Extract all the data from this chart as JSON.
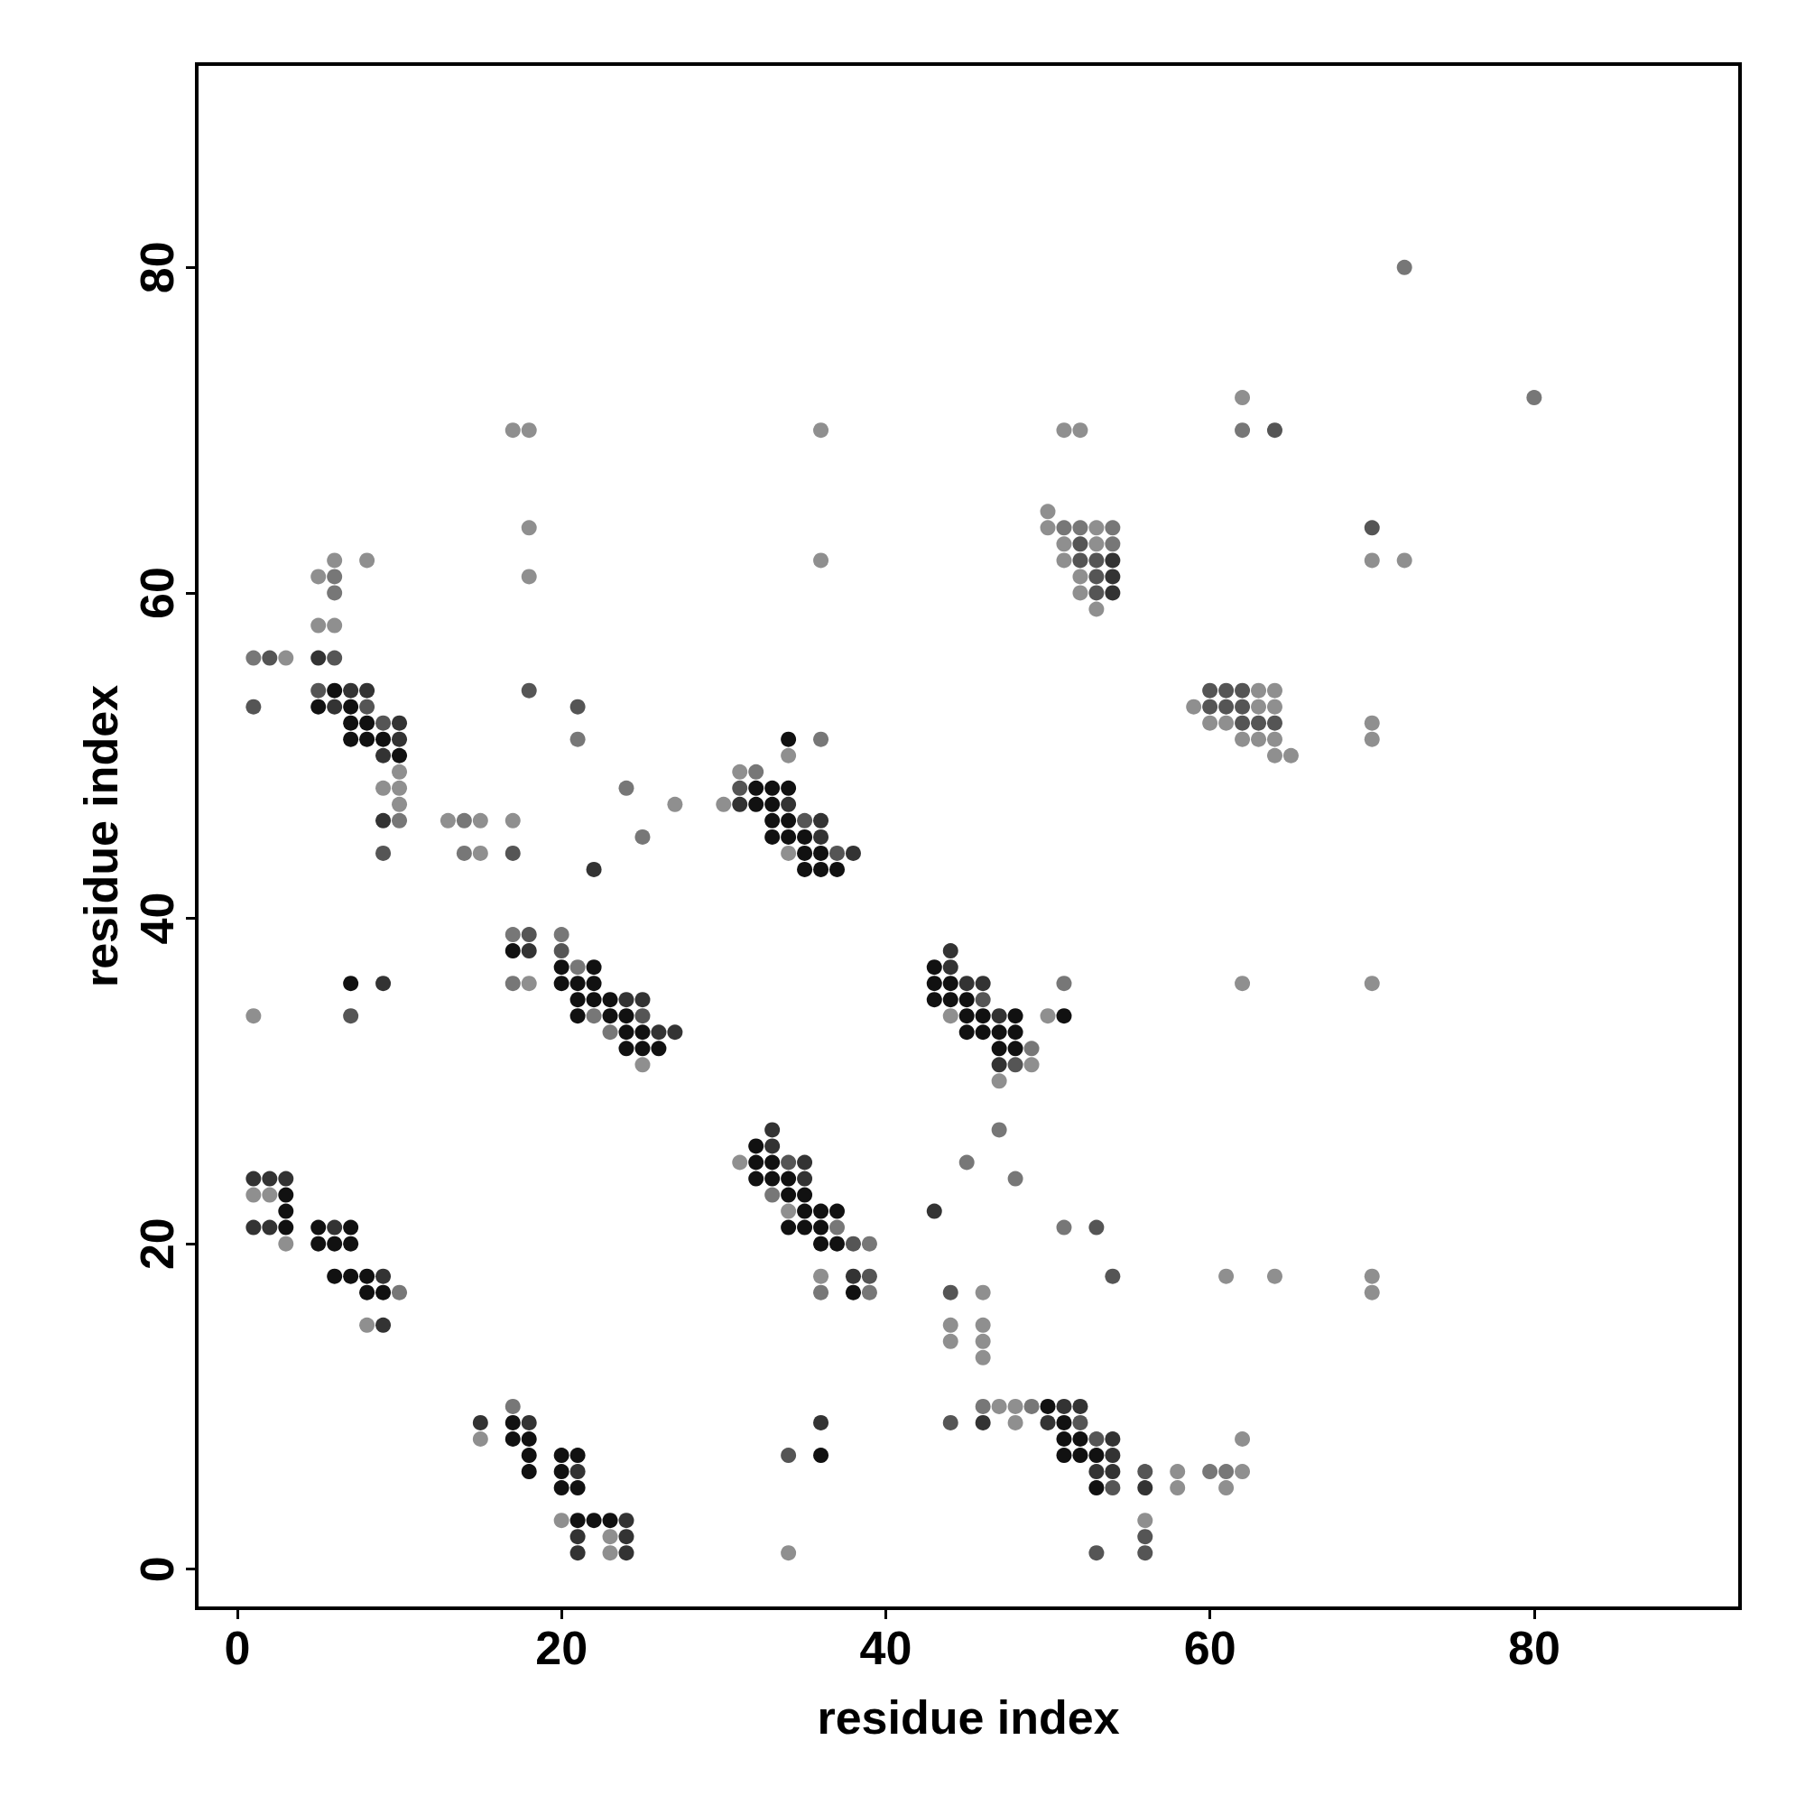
{
  "chart_data": {
    "type": "scatter",
    "xlabel": "residue index",
    "ylabel": "residue index",
    "marker": "circle",
    "xlim": [
      -2.5,
      92.7
    ],
    "ylim": [
      -2.4,
      92.5
    ],
    "xticks": [
      0,
      20,
      40,
      60,
      80
    ],
    "yticks": [
      0,
      20,
      40,
      60,
      80
    ],
    "series": [
      {
        "color": "#111111",
        "x": [
          3,
          3,
          3,
          5,
          7,
          5,
          6,
          7,
          6,
          7,
          8,
          8,
          9,
          17,
          17,
          18,
          18,
          18,
          20,
          21,
          20,
          20,
          21,
          21,
          22,
          23,
          32,
          32,
          33,
          32,
          33,
          34,
          34,
          35,
          35,
          36,
          37,
          34,
          35,
          36,
          36,
          37,
          38,
          50,
          51,
          51,
          52,
          36,
          51,
          52,
          53,
          53,
          6,
          5,
          7,
          7,
          8,
          7,
          8,
          9,
          10,
          17,
          20,
          22,
          7,
          20,
          21,
          22,
          21,
          22,
          23,
          21,
          23,
          24,
          24,
          25,
          24,
          25,
          26,
          34,
          32,
          33,
          34,
          32,
          33,
          33,
          34,
          33,
          34,
          35,
          35,
          36,
          35,
          36,
          37,
          43,
          43,
          44,
          43,
          44,
          45,
          45,
          46,
          48,
          51,
          45,
          46,
          47,
          48,
          47,
          48
        ],
        "values": [
          23,
          22,
          21,
          21,
          21,
          20,
          20,
          20,
          18,
          18,
          18,
          17,
          17,
          9,
          8,
          8,
          7,
          6,
          7,
          7,
          6,
          5,
          5,
          3,
          3,
          3,
          26,
          25,
          25,
          24,
          24,
          24,
          23,
          23,
          22,
          22,
          22,
          21,
          21,
          21,
          20,
          20,
          17,
          10,
          9,
          8,
          8,
          7,
          7,
          7,
          7,
          5,
          54,
          53,
          53,
          52,
          52,
          51,
          51,
          51,
          50,
          38,
          37,
          37,
          36,
          36,
          36,
          36,
          35,
          35,
          35,
          34,
          34,
          34,
          33,
          33,
          32,
          32,
          32,
          51,
          48,
          48,
          48,
          47,
          47,
          46,
          46,
          45,
          45,
          45,
          44,
          44,
          43,
          43,
          43,
          37,
          36,
          36,
          35,
          35,
          35,
          34,
          34,
          34,
          34,
          33,
          33,
          33,
          33,
          32,
          32
        ]
      },
      {
        "color": "#333333",
        "x": [
          1,
          2,
          3,
          1,
          2,
          6,
          9,
          9,
          15,
          18,
          21,
          24,
          21,
          24,
          21,
          24,
          33,
          33,
          35,
          35,
          43,
          38,
          51,
          52,
          36,
          46,
          50,
          54,
          54,
          53,
          54,
          56,
          5,
          7,
          8,
          6,
          10,
          10,
          9,
          9,
          22,
          18,
          9,
          24,
          25,
          26,
          27,
          31,
          34,
          36,
          36,
          38,
          44,
          44,
          45,
          46,
          47,
          47,
          54,
          54,
          54
        ],
        "values": [
          24,
          24,
          24,
          21,
          21,
          21,
          18,
          15,
          9,
          9,
          6,
          3,
          2,
          2,
          1,
          1,
          27,
          26,
          25,
          24,
          22,
          18,
          10,
          10,
          9,
          9,
          9,
          8,
          7,
          6,
          6,
          5,
          56,
          54,
          54,
          53,
          52,
          51,
          50,
          46,
          43,
          38,
          36,
          35,
          35,
          33,
          33,
          47,
          47,
          46,
          45,
          44,
          38,
          37,
          36,
          36,
          34,
          31,
          62,
          61,
          60
        ]
      },
      {
        "color": "#555555",
        "x": [
          34,
          53,
          38,
          39,
          54,
          44,
          44,
          52,
          53,
          34,
          54,
          53,
          60,
          61,
          62,
          60,
          61,
          62,
          62,
          63,
          64,
          56,
          56,
          56,
          2,
          6,
          5,
          18,
          1,
          8,
          21,
          9,
          9,
          17,
          18,
          20,
          7,
          25,
          31,
          35,
          37,
          46,
          48,
          64,
          70,
          52,
          52,
          53,
          53,
          53
        ],
        "values": [
          25,
          21,
          20,
          18,
          18,
          17,
          9,
          9,
          8,
          7,
          5,
          1,
          54,
          54,
          54,
          53,
          53,
          53,
          52,
          52,
          52,
          6,
          2,
          1,
          56,
          56,
          54,
          54,
          53,
          53,
          53,
          52,
          44,
          44,
          39,
          38,
          34,
          34,
          48,
          46,
          44,
          35,
          31,
          70,
          64,
          63,
          62,
          62,
          61,
          60
        ]
      },
      {
        "color": "#777777",
        "x": [
          10,
          17,
          47,
          45,
          48,
          33,
          37,
          51,
          39,
          36,
          39,
          46,
          49,
          60,
          61,
          1,
          21,
          24,
          10,
          14,
          25,
          14,
          17,
          20,
          21,
          17,
          22,
          23,
          36,
          32,
          51,
          49,
          72,
          80,
          62,
          51,
          52,
          54,
          54,
          6,
          6
        ],
        "values": [
          17,
          10,
          27,
          25,
          24,
          23,
          21,
          21,
          20,
          17,
          17,
          10,
          10,
          6,
          6,
          56,
          51,
          48,
          46,
          46,
          45,
          44,
          39,
          39,
          37,
          36,
          34,
          33,
          51,
          49,
          36,
          32,
          80,
          72,
          70,
          64,
          64,
          64,
          63,
          61,
          60
        ]
      },
      {
        "color": "#8f8f8f",
        "x": [
          1,
          2,
          3,
          8,
          15,
          20,
          23,
          23,
          31,
          34,
          36,
          46,
          44,
          46,
          44,
          46,
          46,
          47,
          48,
          48,
          34,
          63,
          64,
          59,
          63,
          64,
          60,
          61,
          62,
          63,
          64,
          64,
          65,
          70,
          70,
          62,
          70,
          61,
          64,
          70,
          70,
          62,
          58,
          62,
          58,
          61,
          56,
          3,
          10,
          9,
          10,
          10,
          27,
          13,
          15,
          17,
          15,
          18,
          1,
          25,
          34,
          31,
          30,
          34,
          44,
          50,
          49,
          47,
          62,
          17,
          18,
          36,
          51,
          52,
          50,
          18,
          50,
          53,
          51,
          53,
          6,
          8,
          36,
          51,
          70,
          72,
          5,
          18,
          52,
          52,
          53,
          5,
          6
        ],
        "values": [
          23,
          23,
          20,
          15,
          8,
          3,
          2,
          1,
          25,
          22,
          18,
          17,
          15,
          15,
          14,
          14,
          13,
          10,
          10,
          9,
          1,
          54,
          54,
          53,
          53,
          53,
          52,
          52,
          51,
          51,
          51,
          50,
          50,
          52,
          51,
          36,
          36,
          18,
          18,
          18,
          17,
          8,
          6,
          6,
          5,
          5,
          3,
          56,
          49,
          48,
          48,
          47,
          47,
          46,
          46,
          46,
          44,
          36,
          34,
          31,
          50,
          49,
          47,
          44,
          34,
          34,
          31,
          30,
          72,
          70,
          70,
          70,
          70,
          70,
          65,
          64,
          64,
          64,
          63,
          63,
          62,
          62,
          62,
          62,
          62,
          62,
          61,
          61,
          61,
          60,
          59,
          58,
          58
        ]
      }
    ]
  }
}
